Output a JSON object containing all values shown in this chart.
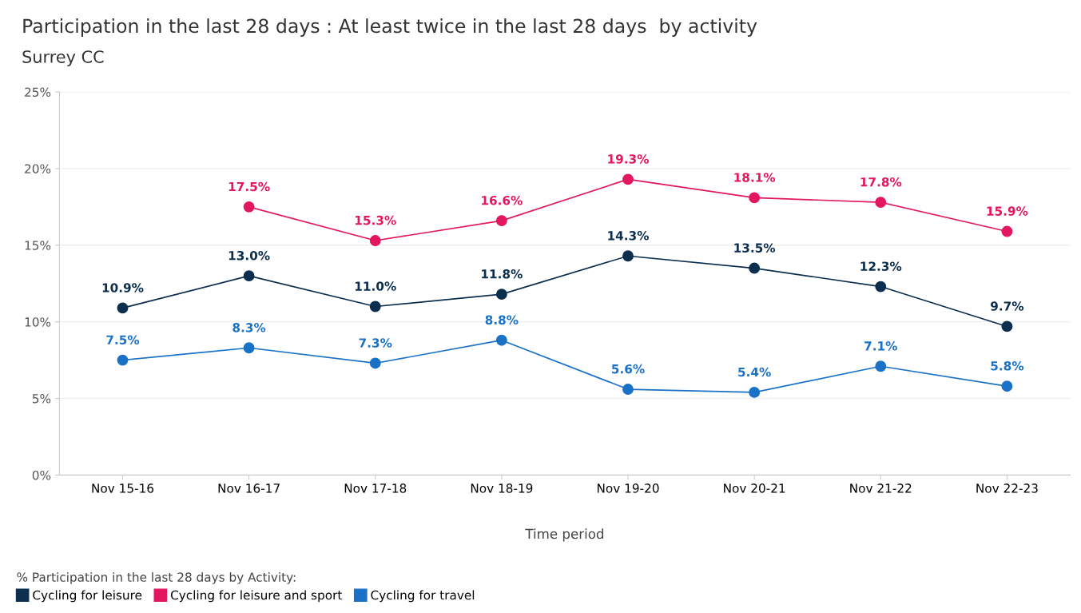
{
  "chart_data": {
    "type": "line",
    "title": "Participation in the last 28 days : At least twice in the last 28 days  by activity",
    "subtitle": "Surrey CC",
    "xlabel": "Time period",
    "legend_title": "% Participation in the last 28 days by Activity:",
    "categories": [
      "Nov 15-16",
      "Nov 16-17",
      "Nov 17-18",
      "Nov 18-19",
      "Nov 19-20",
      "Nov 20-21",
      "Nov 21-22",
      "Nov 22-23"
    ],
    "series": [
      {
        "name": "Cycling for leisure",
        "color": "#0d2f4f",
        "values": [
          10.9,
          13.0,
          11.0,
          11.8,
          14.3,
          13.5,
          12.3,
          9.7
        ],
        "value_labels": [
          "10.9%",
          "13.0%",
          "11.0%",
          "11.8%",
          "14.3%",
          "13.5%",
          "12.3%",
          "9.7%"
        ]
      },
      {
        "name": "Cycling for leisure and sport",
        "color": "#e2175f",
        "values": [
          null,
          17.5,
          15.3,
          16.6,
          19.3,
          18.1,
          17.8,
          15.9
        ],
        "value_labels": [
          null,
          "17.5%",
          "15.3%",
          "16.6%",
          "19.3%",
          "18.1%",
          "17.8%",
          "15.9%"
        ]
      },
      {
        "name": "Cycling for travel",
        "color": "#1a72c7",
        "values": [
          7.5,
          8.3,
          7.3,
          8.8,
          5.6,
          5.4,
          7.1,
          5.8
        ],
        "value_labels": [
          "7.5%",
          "8.3%",
          "7.3%",
          "8.8%",
          "5.6%",
          "5.4%",
          "7.1%",
          "5.8%"
        ]
      }
    ],
    "ylim": [
      0,
      25
    ],
    "yticks": [
      {
        "value": 0,
        "label": "0%"
      },
      {
        "value": 5,
        "label": "5%"
      },
      {
        "value": 10,
        "label": "10%"
      },
      {
        "value": 15,
        "label": "15%"
      },
      {
        "value": 20,
        "label": "20%"
      },
      {
        "value": 25,
        "label": "25%"
      }
    ],
    "grid": "y",
    "legend": "bottom left",
    "marker": "circle",
    "line_style": "solid"
  }
}
